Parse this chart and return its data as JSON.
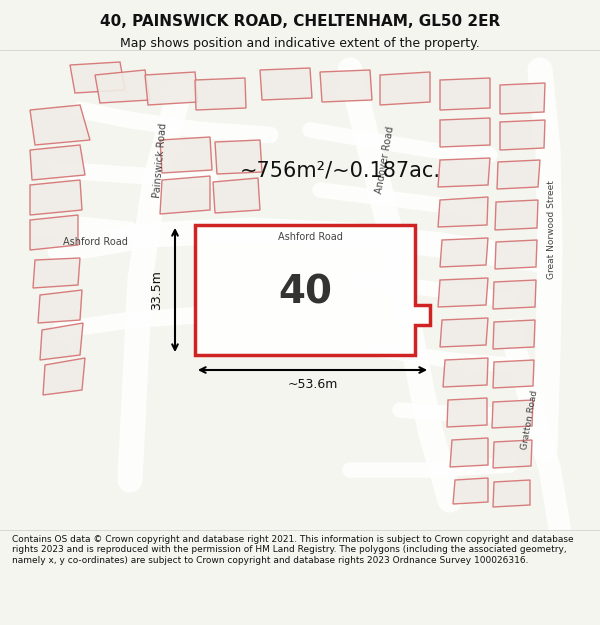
{
  "title": "40, PAINSWICK ROAD, CHELTENHAM, GL50 2ER",
  "subtitle": "Map shows position and indicative extent of the property.",
  "area_text": "~756m²/~0.187ac.",
  "number_label": "40",
  "dim_width": "~53.6m",
  "dim_height": "33.5m",
  "footer_text": "Contains OS data © Crown copyright and database right 2021. This information is subject to Crown copyright and database rights 2023 and is reproduced with the permission of HM Land Registry. The polygons (including the associated geometry, namely x, y co-ordinates) are subject to Crown copyright and database rights 2023 Ordnance Survey 100026316.",
  "bg_color": "#f0ece8",
  "map_bg": "#e8e0d8",
  "street_color": "#ffffff",
  "building_stroke": "#e05050",
  "building_fill": "#f8f8f8",
  "highlight_fill": "none",
  "highlight_stroke": "#cc0000",
  "road_label_color": "#555555",
  "title_color": "#111111",
  "footer_color": "#111111",
  "dim_color": "#111111"
}
